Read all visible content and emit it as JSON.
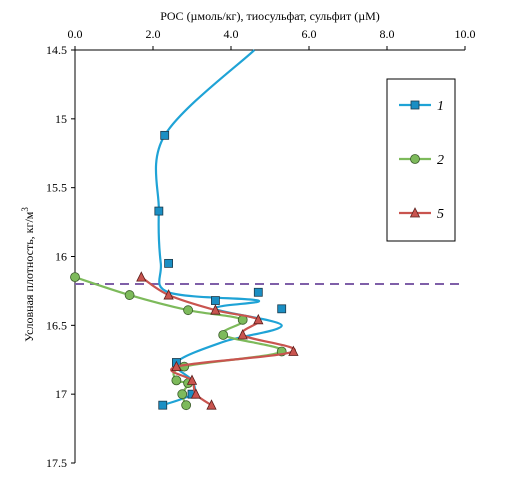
{
  "chart_data": {
    "type": "line",
    "title": "",
    "xlabel": "POC (µмоль/кг), тиосульфат, сульфит (µM)",
    "ylabel": "Условная плотность, кг/м",
    "ylabel_sup": "3",
    "x_axis_position": "top",
    "y_axis_inverted": true,
    "xlim": [
      0,
      10
    ],
    "ylim": [
      14.5,
      17.5
    ],
    "x_ticks": [
      "0.0",
      "2.0",
      "4.0",
      "6.0",
      "8.0",
      "10.0"
    ],
    "y_ticks": [
      "14.5",
      "15",
      "15.5",
      "16",
      "16.5",
      "17",
      "17.5"
    ],
    "grid": false,
    "legend_position": "right",
    "reference_line": {
      "y": 16.2,
      "style": "dashed",
      "color": "#7f5fa8"
    },
    "series": [
      {
        "name": "1",
        "color": "#1fa3d6",
        "marker": "square",
        "marker_color": "#1a8fc4",
        "x": [
          4.6,
          2.3,
          2.15,
          2.2,
          2.4,
          4.7,
          3.6,
          5.3,
          3.8,
          2.6,
          3.0,
          3.0,
          2.25
        ],
        "y": [
          14.5,
          15.12,
          15.67,
          16.05,
          16.26,
          16.32,
          16.38,
          16.5,
          16.62,
          16.77,
          16.9,
          17.0,
          17.08
        ],
        "markers_x": [
          2.3,
          2.15,
          2.4,
          4.7,
          3.6,
          5.3,
          2.6,
          3.0,
          2.25
        ],
        "markers_y": [
          15.12,
          15.67,
          16.05,
          16.26,
          16.32,
          16.38,
          16.77,
          17.0,
          17.08
        ]
      },
      {
        "name": "2",
        "color": "#7dba5b",
        "marker": "circle",
        "marker_color": "#7dba5b",
        "x": [
          0.0,
          1.4,
          2.9,
          4.3,
          3.8,
          5.3,
          2.8,
          2.6,
          2.9,
          2.75,
          2.85
        ],
        "y": [
          16.15,
          16.28,
          16.39,
          16.46,
          16.57,
          16.69,
          16.8,
          16.9,
          16.92,
          17.0,
          17.08
        ],
        "markers_x": [
          0.0,
          1.4,
          2.9,
          4.3,
          3.8,
          5.3,
          2.8,
          2.6,
          2.9,
          2.75,
          2.85
        ],
        "markers_y": [
          16.15,
          16.28,
          16.39,
          16.46,
          16.57,
          16.69,
          16.8,
          16.9,
          16.92,
          17.0,
          17.08
        ]
      },
      {
        "name": "5",
        "color": "#c9544f",
        "marker": "triangle",
        "marker_color": "#c9544f",
        "x": [
          1.7,
          2.4,
          3.6,
          4.7,
          4.3,
          5.6,
          2.6,
          3.0,
          3.1,
          3.5
        ],
        "y": [
          16.15,
          16.28,
          16.39,
          16.46,
          16.57,
          16.69,
          16.8,
          16.9,
          17.0,
          17.08
        ],
        "markers_x": [
          1.7,
          2.4,
          3.6,
          4.7,
          4.3,
          5.6,
          2.6,
          3.0,
          3.1,
          3.5
        ],
        "markers_y": [
          16.15,
          16.28,
          16.39,
          16.46,
          16.57,
          16.69,
          16.8,
          16.9,
          17.0,
          17.08
        ]
      }
    ]
  }
}
